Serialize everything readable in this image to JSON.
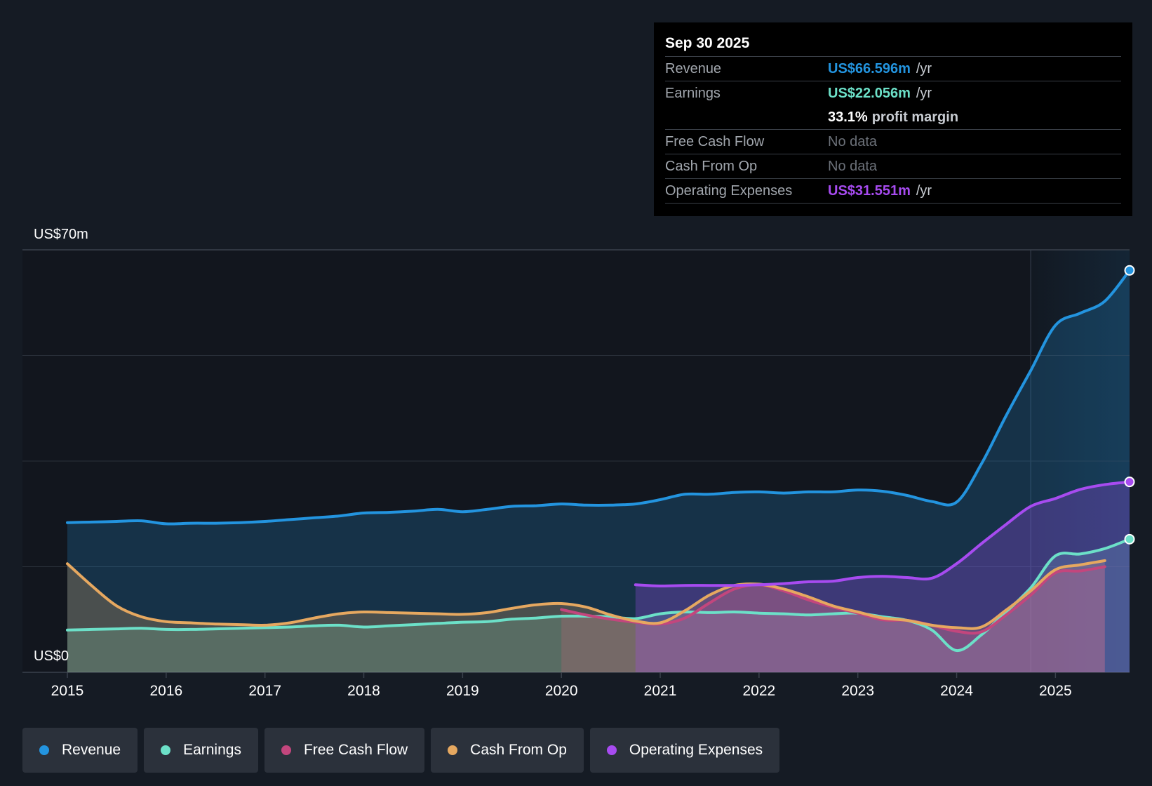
{
  "tooltip": {
    "date": "Sep 30 2025",
    "rows": [
      {
        "name": "Revenue",
        "value": "US$66.596m",
        "unit": "/yr",
        "color": "#2394df"
      },
      {
        "name": "Earnings",
        "value": "US$22.056m",
        "unit": "/yr",
        "color": "#6ce0c8"
      },
      {
        "name": "",
        "margin_value": "33.1%",
        "margin_label": "profit margin"
      },
      {
        "name": "Free Cash Flow",
        "nodata": "No data"
      },
      {
        "name": "Cash From Op",
        "nodata": "No data"
      },
      {
        "name": "Operating Expenses",
        "value": "US$31.551m",
        "unit": "/yr",
        "color": "#a74bf0"
      }
    ]
  },
  "legend": [
    {
      "label": "Revenue",
      "color": "#2394df"
    },
    {
      "label": "Earnings",
      "color": "#6ce0c8"
    },
    {
      "label": "Free Cash Flow",
      "color": "#c3467d"
    },
    {
      "label": "Cash From Op",
      "color": "#e6a860"
    },
    {
      "label": "Operating Expenses",
      "color": "#a74bf0"
    }
  ],
  "chart_data": {
    "type": "line",
    "title": "",
    "ylabel_top": "US$70m",
    "ylabel_bottom": "US$0",
    "ylim": [
      0,
      70
    ],
    "xlim": [
      2015.0,
      2025.75
    ],
    "x_ticks": [
      "2015",
      "2016",
      "2017",
      "2018",
      "2019",
      "2020",
      "2021",
      "2022",
      "2023",
      "2024",
      "2025"
    ],
    "x_tick_values": [
      2015,
      2016,
      2017,
      2018,
      2019,
      2020,
      2021,
      2022,
      2023,
      2024,
      2025
    ],
    "highlight_start": 2024.75,
    "series": [
      {
        "name": "Revenue",
        "color": "#2394df",
        "x": [
          2015.0,
          2015.25,
          2015.5,
          2015.75,
          2016.0,
          2016.25,
          2016.5,
          2016.75,
          2017.0,
          2017.25,
          2017.5,
          2017.75,
          2018.0,
          2018.25,
          2018.5,
          2018.75,
          2019.0,
          2019.25,
          2019.5,
          2019.75,
          2020.0,
          2020.25,
          2020.5,
          2020.75,
          2021.0,
          2021.25,
          2021.5,
          2021.75,
          2022.0,
          2022.25,
          2022.5,
          2022.75,
          2023.0,
          2023.25,
          2023.5,
          2023.75,
          2024.0,
          2024.25,
          2024.5,
          2024.75,
          2025.0,
          2025.25,
          2025.5,
          2025.75
        ],
        "values": [
          24.8,
          24.9,
          25.0,
          25.1,
          24.6,
          24.7,
          24.7,
          24.8,
          25.0,
          25.3,
          25.6,
          25.9,
          26.4,
          26.5,
          26.7,
          27.0,
          26.6,
          27.0,
          27.5,
          27.6,
          27.9,
          27.7,
          27.7,
          27.9,
          28.6,
          29.5,
          29.5,
          29.8,
          29.9,
          29.7,
          29.9,
          29.9,
          30.2,
          30.0,
          29.3,
          28.3,
          28.2,
          34.5,
          42.5,
          50.0,
          57.5,
          59.5,
          61.5,
          66.596
        ]
      },
      {
        "name": "Earnings",
        "color": "#6ce0c8",
        "x": [
          2015.0,
          2015.25,
          2015.5,
          2015.75,
          2016.0,
          2016.25,
          2016.5,
          2016.75,
          2017.0,
          2017.25,
          2017.5,
          2017.75,
          2018.0,
          2018.25,
          2018.5,
          2018.75,
          2019.0,
          2019.25,
          2019.5,
          2019.75,
          2020.0,
          2020.25,
          2020.5,
          2020.75,
          2021.0,
          2021.25,
          2021.5,
          2021.75,
          2022.0,
          2022.25,
          2022.5,
          2022.75,
          2023.0,
          2023.25,
          2023.5,
          2023.75,
          2024.0,
          2024.25,
          2024.5,
          2024.75,
          2025.0,
          2025.25,
          2025.5,
          2025.75
        ],
        "values": [
          7.0,
          7.1,
          7.2,
          7.3,
          7.1,
          7.1,
          7.2,
          7.3,
          7.4,
          7.5,
          7.7,
          7.8,
          7.5,
          7.7,
          7.9,
          8.1,
          8.3,
          8.4,
          8.8,
          9.0,
          9.3,
          9.3,
          9.2,
          8.9,
          9.7,
          10.0,
          9.9,
          10.0,
          9.8,
          9.7,
          9.5,
          9.7,
          9.8,
          9.2,
          8.6,
          7.0,
          3.6,
          6.2,
          10.0,
          14.0,
          19.3,
          19.6,
          20.5,
          22.056
        ]
      },
      {
        "name": "Free Cash Flow",
        "color": "#c3467d",
        "x": [
          2020.0,
          2020.25,
          2020.5,
          2020.75,
          2021.0,
          2021.25,
          2021.5,
          2021.75,
          2022.0,
          2022.25,
          2022.5,
          2022.75,
          2023.0,
          2023.25,
          2023.5,
          2023.75,
          2024.0,
          2024.25,
          2024.5,
          2024.75,
          2025.0,
          2025.25,
          2025.5
        ],
        "values": [
          10.4,
          9.5,
          8.8,
          8.3,
          8.0,
          9.0,
          11.5,
          13.8,
          14.5,
          13.5,
          12.0,
          10.8,
          9.8,
          8.7,
          8.6,
          7.8,
          6.8,
          6.7,
          9.5,
          12.8,
          16.5,
          16.8,
          17.5
        ]
      },
      {
        "name": "Cash From Op",
        "color": "#e6a860",
        "x": [
          2015.0,
          2015.25,
          2015.5,
          2015.75,
          2016.0,
          2016.25,
          2016.5,
          2016.75,
          2017.0,
          2017.25,
          2017.5,
          2017.75,
          2018.0,
          2018.25,
          2018.5,
          2018.75,
          2019.0,
          2019.25,
          2019.5,
          2019.75,
          2020.0,
          2020.25,
          2020.5,
          2020.75,
          2021.0,
          2021.25,
          2021.5,
          2021.75,
          2022.0,
          2022.25,
          2022.5,
          2022.75,
          2023.0,
          2023.25,
          2023.5,
          2023.75,
          2024.0,
          2024.25,
          2024.5,
          2024.75,
          2025.0,
          2025.25,
          2025.5
        ],
        "values": [
          18.0,
          14.3,
          11.0,
          9.2,
          8.4,
          8.2,
          8.0,
          7.9,
          7.8,
          8.2,
          9.0,
          9.7,
          10.0,
          9.9,
          9.8,
          9.7,
          9.6,
          9.9,
          10.6,
          11.2,
          11.4,
          10.8,
          9.5,
          8.5,
          8.2,
          10.2,
          12.8,
          14.4,
          14.6,
          13.8,
          12.5,
          11.0,
          10.0,
          9.0,
          8.6,
          7.8,
          7.4,
          7.5,
          10.3,
          13.5,
          17.0,
          17.8,
          18.5
        ]
      },
      {
        "name": "Operating Expenses",
        "color": "#a74bf0",
        "x": [
          2020.75,
          2021.0,
          2021.25,
          2021.5,
          2021.75,
          2022.0,
          2022.25,
          2022.5,
          2022.75,
          2023.0,
          2023.25,
          2023.5,
          2023.75,
          2024.0,
          2024.25,
          2024.5,
          2024.75,
          2025.0,
          2025.25,
          2025.5,
          2025.75
        ],
        "values": [
          14.5,
          14.3,
          14.4,
          14.4,
          14.4,
          14.5,
          14.7,
          15.0,
          15.1,
          15.7,
          15.9,
          15.7,
          15.6,
          18.0,
          21.3,
          24.5,
          27.5,
          28.8,
          30.3,
          31.1,
          31.551
        ]
      }
    ]
  }
}
